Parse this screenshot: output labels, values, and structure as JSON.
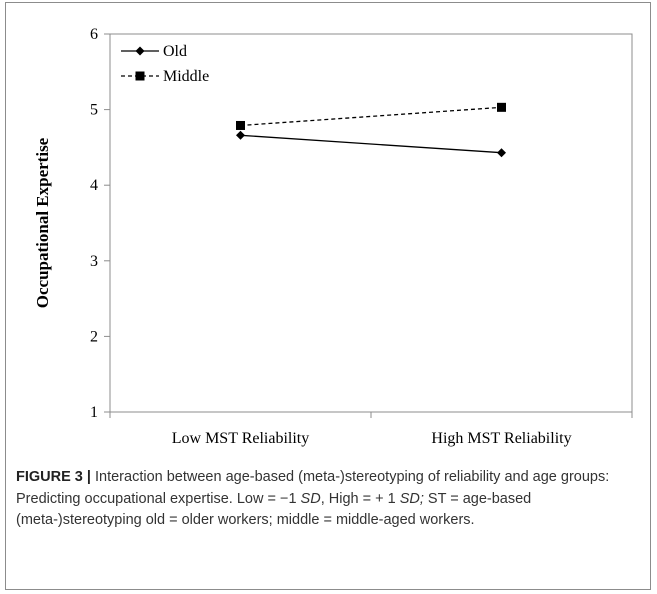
{
  "chart_data": {
    "type": "line",
    "categories": [
      "Low MST Reliability",
      "High MST Reliability"
    ],
    "series": [
      {
        "name": "Old",
        "values": [
          4.66,
          4.43
        ],
        "line_style": "solid",
        "marker": "diamond",
        "color": "#000000"
      },
      {
        "name": "Middle",
        "values": [
          4.79,
          5.03
        ],
        "line_style": "dashed",
        "marker": "square",
        "color": "#000000"
      }
    ],
    "ylabel": "Occupational Expertise",
    "xlabel": "",
    "ylim": [
      1,
      6
    ],
    "yticks": [
      1,
      2,
      3,
      4,
      5,
      6
    ],
    "grid": false,
    "legend_placement": "top-left"
  },
  "caption": {
    "label": "FIGURE 3 |",
    "part1": " Interaction between age-based (meta-)stereotyping of reliability and age groups: Predicting occupational expertise. Low = −1 ",
    "sd1": "SD",
    "part2": ", High = + 1 ",
    "sd2": "SD;",
    "part3": " ST = age-based (meta-)stereotyping old = older workers; middle = middle-aged workers."
  }
}
